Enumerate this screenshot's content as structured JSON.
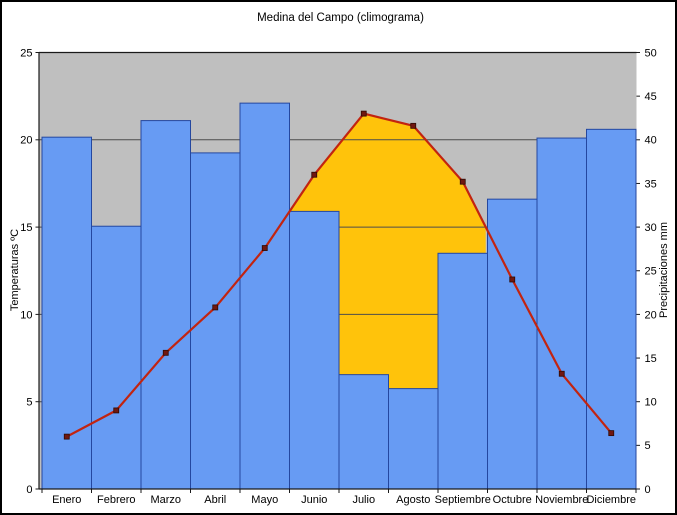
{
  "title": "Medina del Campo (climograma)",
  "left_axis_title": "Temperaturas ºC",
  "right_axis_title": "Precipitaciones mm",
  "colors": {
    "plot_background": "#BFBFBF",
    "bar_fill": "#679BF3",
    "bar_border": "#24479F",
    "arid_fill": "#FFC30B",
    "temp_line": "#C22410",
    "temp_marker": "#701710",
    "gridline": "#4D4D4D",
    "axis": "#1A1A1A",
    "text": "#000000",
    "frame_border": "#000000"
  },
  "chart_data": {
    "type": "bar",
    "subtype": "climogram: precipitation bars + temperature line, dual axis",
    "title": "Medina del Campo (climograma)",
    "categories": [
      "Enero",
      "Febrero",
      "Marzo",
      "Abril",
      "Mayo",
      "Junio",
      "Julio",
      "Agosto",
      "Septiembre",
      "Octubre",
      "Noviembre",
      "Diciembre"
    ],
    "series": [
      {
        "name": "Precipitaciones",
        "type": "bar",
        "axis": "right",
        "unit": "mm",
        "values": [
          40.3,
          30.1,
          42.2,
          38.5,
          44.2,
          31.8,
          13.1,
          11.5,
          27.0,
          33.2,
          40.2,
          41.2
        ]
      },
      {
        "name": "Temperaturas",
        "type": "line",
        "axis": "left",
        "unit": "ºC",
        "values": [
          3.0,
          4.5,
          7.8,
          10.4,
          13.8,
          18.0,
          21.5,
          20.8,
          17.6,
          12.0,
          6.6,
          3.2
        ]
      }
    ],
    "left_axis": {
      "label": "Temperaturas ºC",
      "min": 0,
      "max": 25,
      "step": 5,
      "ticks": [
        0,
        5,
        10,
        15,
        20,
        25
      ]
    },
    "right_axis": {
      "label": "Precipitaciones mm",
      "min": 0,
      "max": 50,
      "step": 5,
      "ticks": [
        0,
        5,
        10,
        15,
        20,
        25,
        30,
        35,
        40,
        45,
        50
      ]
    },
    "legend": "none",
    "grid": "horizontal lines every 5 left-axis units, drawn over arid area, hidden behind bars",
    "arid_zone": {
      "months": [
        "Junio",
        "Julio",
        "Agosto",
        "Septiembre"
      ],
      "note": "yellow area where temperature curve rises above precipitation bars"
    }
  }
}
